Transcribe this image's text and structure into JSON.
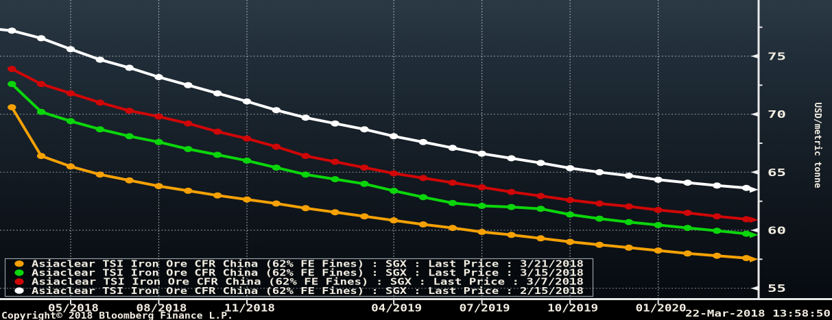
{
  "chart_data": {
    "type": "line",
    "description": "Iron ore forward curves (futures strip) observed on four different dates",
    "ylabel": "USD/metric tonne",
    "x_axis": {
      "ticks": [
        {
          "label": "05/2018",
          "month": 2
        },
        {
          "label": "08/2018",
          "month": 5
        },
        {
          "label": "11/2018",
          "month": 8
        },
        {
          "label": "04/2019",
          "month": 13
        },
        {
          "label": "07/2019",
          "month": 16
        },
        {
          "label": "10/2019",
          "month": 19
        },
        {
          "label": "01/2020",
          "month": 22
        }
      ]
    },
    "y_axis": {
      "major_ticks": [
        75,
        70,
        65,
        60,
        55
      ],
      "minor_ticks": [
        77.5,
        72.5,
        67.5,
        62.5,
        57.5
      ],
      "ylim": [
        54,
        79.8
      ]
    },
    "legend": {
      "position": "bottom-left"
    },
    "series": [
      {
        "id": "curve-2018-03-21",
        "color": "#F5A105",
        "legend_label": "Asiaclear TSI Iron Ore CFR China (62% FE Fines) : SGX : Last Price : 3/21/2018",
        "as_of_date": "3/21/2018",
        "start_month": 0,
        "values": [
          70.6,
          66.4,
          65.5,
          64.8,
          64.3,
          63.8,
          63.4,
          63.0,
          62.65,
          62.3,
          61.9,
          61.55,
          61.2,
          60.85,
          60.5,
          60.2,
          59.85,
          59.6,
          59.3,
          59.0,
          58.75,
          58.5,
          58.25,
          58.0,
          57.8,
          57.6
        ],
        "end_value": 57.5
      },
      {
        "id": "curve-2018-03-15",
        "color": "#0BD60B",
        "legend_label": "Asiaclear TSI Iron Ore CFR China (62% FE Fines) : SGX : Last Price : 3/15/2018",
        "as_of_date": "3/15/2018",
        "start_month": 0,
        "values": [
          72.6,
          70.2,
          69.4,
          68.7,
          68.1,
          67.6,
          67.0,
          66.5,
          66.0,
          65.4,
          64.8,
          64.4,
          64.0,
          63.4,
          62.85,
          62.35,
          62.1,
          62.0,
          61.85,
          61.35,
          61.0,
          60.7,
          60.45,
          60.2,
          59.95,
          59.7
        ],
        "end_value": 59.6
      },
      {
        "id": "curve-2018-03-07",
        "color": "#D00707",
        "legend_label": "Asiaclear TSI Iron Ore CFR China (62% FE Fines) : SGX : Last Price : 3/7/2018",
        "as_of_date": "3/7/2018",
        "start_month": 0,
        "values": [
          73.9,
          72.6,
          71.8,
          71.0,
          70.3,
          69.8,
          69.2,
          68.5,
          67.9,
          67.2,
          66.4,
          65.9,
          65.4,
          64.9,
          64.5,
          64.1,
          63.7,
          63.3,
          62.95,
          62.6,
          62.3,
          62.05,
          61.75,
          61.5,
          61.2,
          60.95
        ],
        "end_value": 60.9
      },
      {
        "id": "curve-2018-02-15",
        "color": "#FFFFFF",
        "legend_label": "Asiaclear TSI Iron Ore CFR China (62% FE Fines) : SGX : Last Price : 2/15/2018",
        "as_of_date": "2/15/2018",
        "start_month": -1,
        "values": [
          77.45,
          77.2,
          76.55,
          75.6,
          74.7,
          74.0,
          73.2,
          72.5,
          71.8,
          71.1,
          70.35,
          69.7,
          69.2,
          68.7,
          68.1,
          67.6,
          67.1,
          66.6,
          66.2,
          65.8,
          65.35,
          65.0,
          64.7,
          64.35,
          64.1,
          63.85,
          63.65
        ],
        "end_value": 63.5
      }
    ],
    "footer": {
      "copyright": "Copyright© 2018 Bloomberg Finance L.P.",
      "timestamp": "22-Mar-2018 13:58:50"
    },
    "palette": {
      "background_top": "#2B3945",
      "background_bottom": "#070B10",
      "axis": "#E9E9E9",
      "text": "#F2EDE2"
    }
  }
}
